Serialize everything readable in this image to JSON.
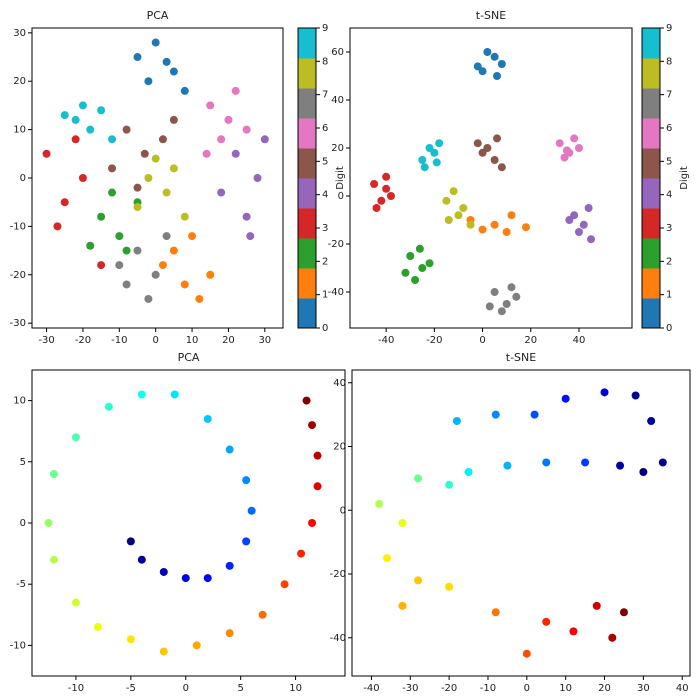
{
  "chart_data": [
    {
      "type": "scatter",
      "title": "PCA",
      "xlim": [
        -34,
        35
      ],
      "ylim": [
        -31,
        31
      ],
      "xticks": [
        -30,
        -20,
        -10,
        0,
        10,
        20,
        30
      ],
      "yticks": [
        -30,
        -20,
        -10,
        0,
        10,
        20,
        30
      ],
      "colorbar": {
        "label": "Digit",
        "clim": [
          0,
          9
        ],
        "ticks": [
          0,
          1,
          2,
          3,
          4,
          5,
          6,
          7,
          8,
          9
        ]
      },
      "series": [
        {
          "color": "#1f77b4",
          "x": [
            -5,
            0,
            5,
            8,
            -2,
            3
          ],
          "y": [
            25,
            28,
            22,
            18,
            20,
            24
          ]
        },
        {
          "color": "#ff7f0e",
          "x": [
            2,
            8,
            12,
            5,
            15,
            10
          ],
          "y": [
            -18,
            -22,
            -25,
            -15,
            -20,
            -12
          ]
        },
        {
          "color": "#2ca02c",
          "x": [
            -15,
            -10,
            -5,
            -18,
            -8,
            -12
          ],
          "y": [
            -8,
            -12,
            -5,
            -14,
            -15,
            -3
          ]
        },
        {
          "color": "#d62728",
          "x": [
            -30,
            -25,
            -20,
            -27,
            -22,
            -15
          ],
          "y": [
            5,
            -5,
            0,
            -10,
            8,
            -18
          ]
        },
        {
          "color": "#9467bd",
          "x": [
            22,
            28,
            25,
            30,
            18,
            26
          ],
          "y": [
            5,
            0,
            -8,
            8,
            -3,
            -12
          ]
        },
        {
          "color": "#8c564b",
          "x": [
            -8,
            -3,
            2,
            -12,
            5,
            -5
          ],
          "y": [
            10,
            5,
            8,
            2,
            12,
            -2
          ]
        },
        {
          "color": "#e377c2",
          "x": [
            15,
            20,
            18,
            22,
            25,
            14
          ],
          "y": [
            15,
            12,
            8,
            18,
            10,
            5
          ]
        },
        {
          "color": "#7f7f7f",
          "x": [
            -5,
            0,
            -8,
            3,
            -2,
            -10
          ],
          "y": [
            -15,
            -20,
            -22,
            -12,
            -25,
            -18
          ]
        },
        {
          "color": "#bcbd22",
          "x": [
            -2,
            3,
            0,
            5,
            -5,
            8
          ],
          "y": [
            0,
            -3,
            4,
            2,
            -6,
            -8
          ]
        },
        {
          "color": "#17becf",
          "x": [
            -22,
            -18,
            -15,
            -25,
            -12,
            -20
          ],
          "y": [
            12,
            10,
            14,
            13,
            8,
            15
          ]
        }
      ]
    },
    {
      "type": "scatter",
      "title": "t-SNE",
      "xlim": [
        -55,
        62
      ],
      "ylim": [
        -55,
        70
      ],
      "xticks": [
        -40,
        -20,
        0,
        20,
        40
      ],
      "yticks": [
        -40,
        -20,
        0,
        20,
        40,
        60
      ],
      "colorbar": {
        "label": "Digit",
        "clim": [
          0,
          9
        ],
        "ticks": [
          0,
          1,
          2,
          3,
          4,
          5,
          6,
          7,
          8,
          9
        ]
      },
      "series": [
        {
          "color": "#1f77b4",
          "x": [
            0,
            5,
            8,
            2,
            -2,
            6
          ],
          "y": [
            52,
            58,
            55,
            60,
            54,
            50
          ]
        },
        {
          "color": "#ff7f0e",
          "x": [
            -5,
            5,
            12,
            18,
            0,
            10
          ],
          "y": [
            -10,
            -12,
            -8,
            -13,
            -14,
            -15
          ]
        },
        {
          "color": "#2ca02c",
          "x": [
            -30,
            -25,
            -28,
            -22,
            -32,
            -26
          ],
          "y": [
            -25,
            -30,
            -35,
            -28,
            -32,
            -22
          ]
        },
        {
          "color": "#d62728",
          "x": [
            -45,
            -40,
            -42,
            -38,
            -44,
            -40
          ],
          "y": [
            5,
            8,
            -2,
            0,
            -5,
            3
          ]
        },
        {
          "color": "#9467bd",
          "x": [
            38,
            42,
            45,
            40,
            44,
            36
          ],
          "y": [
            -8,
            -12,
            -18,
            -15,
            -5,
            -10
          ]
        },
        {
          "color": "#8c564b",
          "x": [
            -2,
            2,
            5,
            8,
            0,
            6
          ],
          "y": [
            22,
            20,
            15,
            12,
            18,
            24
          ]
        },
        {
          "color": "#e377c2",
          "x": [
            32,
            36,
            40,
            34,
            38,
            35
          ],
          "y": [
            22,
            18,
            20,
            16,
            24,
            19
          ]
        },
        {
          "color": "#7f7f7f",
          "x": [
            5,
            10,
            14,
            8,
            12,
            3
          ],
          "y": [
            -40,
            -45,
            -42,
            -48,
            -38,
            -46
          ]
        },
        {
          "color": "#bcbd22",
          "x": [
            -15,
            -10,
            -8,
            -12,
            -5,
            -14
          ],
          "y": [
            -2,
            -8,
            -5,
            2,
            -12,
            -10
          ]
        },
        {
          "color": "#17becf",
          "x": [
            -25,
            -20,
            -18,
            -22,
            -24,
            -19
          ],
          "y": [
            15,
            18,
            22,
            20,
            12,
            14
          ]
        }
      ]
    },
    {
      "type": "cscatter",
      "title": "PCA",
      "colormap": "jet",
      "xlim": [
        -14,
        14.5
      ],
      "ylim": [
        -12.5,
        12.5
      ],
      "xticks": [
        -10,
        -5,
        0,
        5,
        10
      ],
      "yticks": [
        -10,
        -5,
        0,
        5,
        10
      ],
      "x": [
        -5,
        -4,
        -2,
        0,
        2,
        4,
        5.5,
        6,
        5.5,
        4,
        2,
        -1,
        -4,
        -7,
        -10,
        -12,
        -12.5,
        -12,
        -10,
        -8,
        -5,
        -2,
        1,
        4,
        7,
        9,
        10.5,
        11.5,
        12,
        12,
        11.5,
        11
      ],
      "y": [
        -1.5,
        -3,
        -4,
        -4.5,
        -4.5,
        -3.5,
        -1.5,
        1,
        3.5,
        6,
        8.5,
        10.5,
        10.5,
        9.5,
        7,
        4,
        0,
        -3,
        -6.5,
        -8.5,
        -9.5,
        -10.5,
        -10,
        -9,
        -7.5,
        -5,
        -2.5,
        0,
        3,
        5.5,
        8,
        10
      ],
      "c": [
        0,
        0.03,
        0.06,
        0.1,
        0.13,
        0.16,
        0.19,
        0.23,
        0.26,
        0.29,
        0.32,
        0.35,
        0.39,
        0.42,
        0.45,
        0.48,
        0.52,
        0.55,
        0.58,
        0.61,
        0.65,
        0.68,
        0.71,
        0.74,
        0.77,
        0.81,
        0.84,
        0.87,
        0.9,
        0.94,
        0.97,
        1
      ]
    },
    {
      "type": "cscatter",
      "title": "t-SNE",
      "colormap": "jet",
      "xlim": [
        -45,
        42
      ],
      "ylim": [
        -52,
        44
      ],
      "xticks": [
        -40,
        -30,
        -20,
        -10,
        0,
        10,
        20,
        30,
        40
      ],
      "yticks": [
        -40,
        -20,
        0,
        20,
        40
      ],
      "x": [
        28,
        32,
        30,
        24,
        35,
        20,
        10,
        2,
        -8,
        -18,
        15,
        5,
        -5,
        -15,
        -20,
        -28,
        -38,
        -32,
        -36,
        -28,
        -32,
        -20,
        -8,
        0,
        5,
        12,
        18,
        22,
        25
      ],
      "y": [
        36,
        28,
        12,
        14,
        15,
        37,
        35,
        30,
        30,
        28,
        15,
        15,
        14,
        12,
        8,
        10,
        2,
        -4,
        -15,
        -22,
        -30,
        -24,
        -32,
        -45,
        -35,
        -38,
        -30,
        -40,
        -32
      ],
      "c": [
        0.02,
        0.03,
        0,
        0.04,
        0.01,
        0.08,
        0.14,
        0.2,
        0.26,
        0.3,
        0.18,
        0.24,
        0.3,
        0.36,
        0.42,
        0.48,
        0.55,
        0.6,
        0.64,
        0.68,
        0.7,
        0.66,
        0.76,
        0.8,
        0.84,
        0.88,
        0.92,
        0.96,
        1
      ]
    }
  ]
}
